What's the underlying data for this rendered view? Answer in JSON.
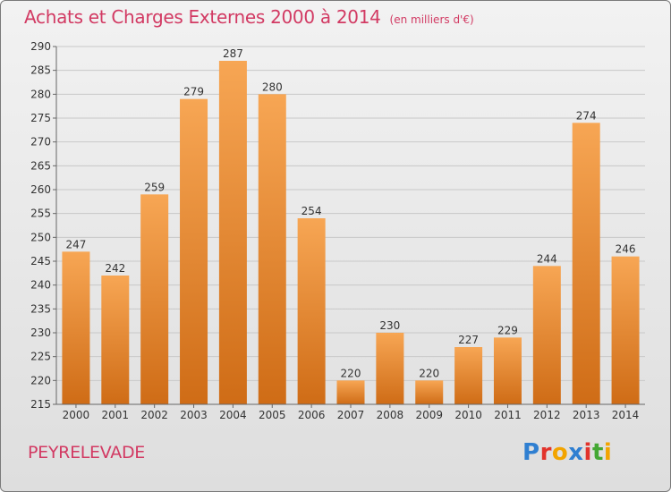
{
  "title": "Achats et Charges Externes 2000 à 2014",
  "subtitle": "(en milliers d'€)",
  "commune": "PEYRELEVADE",
  "logo": {
    "text": "Proxiti",
    "letters": [
      {
        "ch": "P",
        "color": "#2f7fd1"
      },
      {
        "ch": "r",
        "color": "#e2332b"
      },
      {
        "ch": "o",
        "color": "#f2a400"
      },
      {
        "ch": "x",
        "color": "#2f7fd1"
      },
      {
        "ch": "i",
        "color": "#e2332b"
      },
      {
        "ch": "t",
        "color": "#45a834"
      },
      {
        "ch": "i",
        "color": "#f2a400"
      }
    ]
  },
  "chart_data": {
    "type": "bar",
    "categories": [
      "2000",
      "2001",
      "2002",
      "2003",
      "2004",
      "2005",
      "2006",
      "2007",
      "2008",
      "2009",
      "2010",
      "2011",
      "2012",
      "2013",
      "2014"
    ],
    "values": [
      247,
      242,
      259,
      279,
      287,
      280,
      254,
      220,
      230,
      220,
      227,
      229,
      244,
      274,
      246
    ],
    "ylim": [
      215,
      290
    ],
    "ytick_step": 5,
    "grid": true,
    "bar_color_top": "#f7a654",
    "bar_color_bottom": "#cf6c16"
  }
}
